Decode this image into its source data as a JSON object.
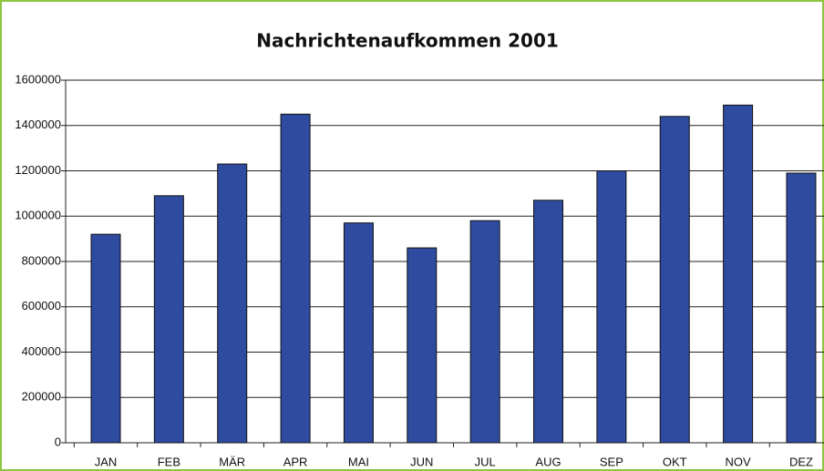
{
  "chart_data": {
    "type": "bar",
    "title": "Nachrichtenaufkommen 2001",
    "categories": [
      "JAN",
      "FEB",
      "MÄR",
      "APR",
      "MAI",
      "JUN",
      "JUL",
      "AUG",
      "SEP",
      "OKT",
      "NOV",
      "DEZ"
    ],
    "values": [
      920000,
      1090000,
      1230000,
      1450000,
      970000,
      860000,
      980000,
      1070000,
      1200000,
      1440000,
      1490000,
      1190000
    ],
    "color": "#2f4b9f",
    "ylim": [
      0,
      1600000
    ],
    "yticks": [
      0,
      200000,
      400000,
      600000,
      800000,
      1000000,
      1200000,
      1400000,
      1600000
    ],
    "grid": true
  }
}
